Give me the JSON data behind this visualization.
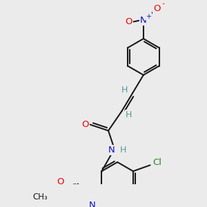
{
  "background_color": "#ebebeb",
  "bond_color": "#1a1a1a",
  "atom_colors": {
    "O": "#ee0000",
    "N": "#1111cc",
    "Cl": "#228822",
    "C": "#1a1a1a",
    "H": "#559999"
  }
}
